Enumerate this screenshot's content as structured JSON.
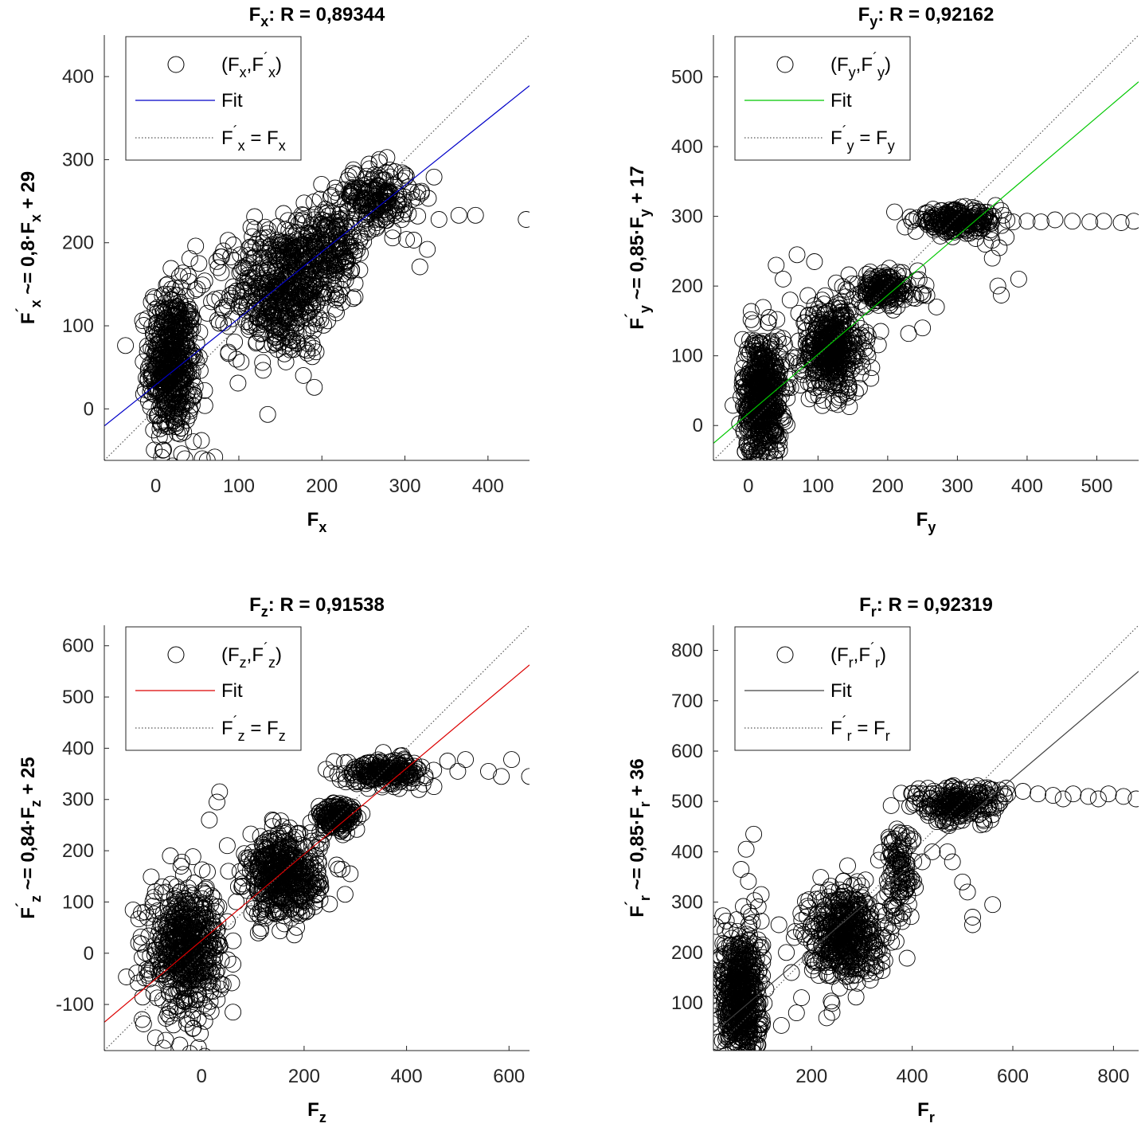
{
  "chart_data": [
    {
      "type": "scatter",
      "id": "fx",
      "title": {
        "var": "F",
        "sub": "x",
        "rest": ": R = 0,89344"
      },
      "xlabel": {
        "main": "F",
        "sub": "x"
      },
      "ylabel": {
        "main": "F",
        "prime": "´",
        "sub": "x",
        "rest": " ~= 0,8·F",
        "sub2": "x",
        "rest2": " + 29"
      },
      "xlim": [
        -62,
        450
      ],
      "ylim": [
        -62,
        450
      ],
      "xticks": [
        0,
        100,
        200,
        300,
        400
      ],
      "yticks": [
        0,
        100,
        200,
        300,
        400
      ],
      "fit": {
        "slope": 0.8,
        "intercept": 29,
        "color": "#0000c8"
      },
      "identity_color": "#555555",
      "legend": {
        "position": "top-left",
        "scatter": {
          "main": "(F",
          "sub": "x",
          "mid": ",F",
          "prime": "´",
          "sub2": "x",
          "end": ")"
        },
        "fit": "Fit",
        "identity": {
          "a": "F",
          "prime": "´",
          "asub": "x",
          "eq": " = F",
          "bsub": "x"
        }
      },
      "clusters": [
        {
          "cx": 20,
          "cy": 55,
          "sx": 14,
          "sy": 45,
          "n": 560
        },
        {
          "cx": 150,
          "cy": 140,
          "sx": 30,
          "sy": 38,
          "n": 520
        },
        {
          "cx": 205,
          "cy": 195,
          "sx": 25,
          "sy": 25,
          "n": 260
        },
        {
          "cx": 265,
          "cy": 255,
          "sx": 22,
          "sy": 18,
          "n": 200
        }
      ],
      "points": [
        [
          446,
          228
        ],
        [
          385,
          233
        ],
        [
          365,
          233
        ],
        [
          341,
          228
        ],
        [
          318,
          171
        ],
        [
          327,
          192
        ],
        [
          302,
          204
        ],
        [
          41,
          181
        ],
        [
          48,
          196
        ],
        [
          56,
          -60
        ],
        [
          62,
          -62
        ],
        [
          71,
          -58
        ],
        [
          35,
          -60
        ],
        [
          75,
          170
        ],
        [
          59,
          154
        ],
        [
          99,
          31
        ],
        [
          55,
          -38
        ],
        [
          31,
          -54
        ],
        [
          52,
          175
        ],
        [
          240,
          151
        ],
        [
          280,
          235
        ],
        [
          300,
          282
        ],
        [
          335,
          279
        ],
        [
          320,
          262
        ]
      ]
    },
    {
      "type": "scatter",
      "id": "fy",
      "title": {
        "var": "F",
        "sub": "y",
        "rest": ": R = 0,92162"
      },
      "xlabel": {
        "main": "F",
        "sub": "y"
      },
      "ylabel": {
        "main": "F",
        "prime": "´",
        "sub": "y",
        "rest": " ~= 0,85·F",
        "sub2": "y",
        "rest2": " + 17"
      },
      "xlim": [
        -50,
        560
      ],
      "ylim": [
        -50,
        560
      ],
      "xticks": [
        0,
        100,
        200,
        300,
        400,
        500
      ],
      "yticks": [
        0,
        100,
        200,
        300,
        400,
        500
      ],
      "fit": {
        "slope": 0.85,
        "intercept": 17,
        "color": "#00c800"
      },
      "identity_color": "#555555",
      "legend": {
        "position": "top-left",
        "scatter": {
          "main": "(F",
          "sub": "y",
          "mid": ",F",
          "prime": "´",
          "sub2": "y",
          "end": ")"
        },
        "fit": "Fit",
        "identity": {
          "a": "F",
          "prime": "´",
          "asub": "y",
          "eq": " = F",
          "bsub": "y"
        }
      },
      "clusters": [
        {
          "cx": 20,
          "cy": 40,
          "sx": 14,
          "sy": 45,
          "n": 560
        },
        {
          "cx": 120,
          "cy": 110,
          "sx": 22,
          "sy": 32,
          "n": 460
        },
        {
          "cx": 195,
          "cy": 195,
          "sx": 25,
          "sy": 12,
          "n": 180
        },
        {
          "cx": 300,
          "cy": 293,
          "sx": 30,
          "sy": 8,
          "n": 240
        }
      ],
      "points": [
        [
          553,
          293
        ],
        [
          535,
          291
        ],
        [
          510,
          293
        ],
        [
          490,
          292
        ],
        [
          465,
          293
        ],
        [
          440,
          295
        ],
        [
          420,
          292
        ],
        [
          400,
          293
        ],
        [
          380,
          292
        ],
        [
          360,
          255
        ],
        [
          350,
          240
        ],
        [
          358,
          200
        ],
        [
          363,
          187
        ],
        [
          388,
          210
        ],
        [
          370,
          270
        ],
        [
          340,
          260
        ],
        [
          70,
          245
        ],
        [
          50,
          210
        ],
        [
          40,
          230
        ],
        [
          95,
          235
        ],
        [
          30,
          155
        ],
        [
          60,
          180
        ],
        [
          270,
          170
        ],
        [
          250,
          140
        ],
        [
          230,
          132
        ],
        [
          190,
          135
        ]
      ]
    },
    {
      "type": "scatter",
      "id": "fz",
      "title": {
        "var": "F",
        "sub": "z",
        "rest": ": R = 0,91538"
      },
      "xlabel": {
        "main": "F",
        "sub": "z"
      },
      "ylabel": {
        "main": "F",
        "prime": "´",
        "sub": "z",
        "rest": " ~= 0,84·F",
        "sub2": "z",
        "rest2": " + 25"
      },
      "xlim": [
        -190,
        640
      ],
      "ylim": [
        -190,
        640
      ],
      "xticks": [
        0,
        200,
        400,
        600
      ],
      "yticks": [
        -100,
        0,
        100,
        200,
        300,
        400,
        500,
        600
      ],
      "fit": {
        "slope": 0.84,
        "intercept": 25,
        "color": "#dc0000"
      },
      "identity_color": "#555555",
      "legend": {
        "position": "top-left",
        "scatter": {
          "main": "(F",
          "sub": "z",
          "mid": ",F",
          "prime": "´",
          "sub2": "z",
          "end": ")"
        },
        "fit": "Fit",
        "identity": {
          "a": "F",
          "prime": "´",
          "asub": "z",
          "eq": " = F",
          "bsub": "z"
        }
      },
      "clusters": [
        {
          "cx": -30,
          "cy": 10,
          "sx": 35,
          "sy": 60,
          "n": 560
        },
        {
          "cx": 160,
          "cy": 150,
          "sx": 35,
          "sy": 40,
          "n": 500
        },
        {
          "cx": 265,
          "cy": 265,
          "sx": 20,
          "sy": 15,
          "n": 160
        },
        {
          "cx": 360,
          "cy": 355,
          "sx": 40,
          "sy": 12,
          "n": 220
        }
      ],
      "points": [
        [
          640,
          345
        ],
        [
          605,
          378
        ],
        [
          585,
          345
        ],
        [
          560,
          355
        ],
        [
          515,
          378
        ],
        [
          480,
          375
        ],
        [
          500,
          355
        ],
        [
          280,
          115
        ],
        [
          290,
          155
        ],
        [
          35,
          315
        ],
        [
          30,
          295
        ],
        [
          15,
          260
        ],
        [
          -70,
          -170
        ],
        [
          -75,
          -185
        ],
        [
          -55,
          -140
        ],
        [
          -90,
          -165
        ],
        [
          50,
          210
        ],
        [
          95,
          160
        ]
      ]
    },
    {
      "type": "scatter",
      "id": "fr",
      "title": {
        "var": "F",
        "sub": "r",
        "rest": ": R = 0,92319"
      },
      "xlabel": {
        "main": "F",
        "sub": "r"
      },
      "ylabel": {
        "main": "F",
        "prime": "´",
        "sub": "r",
        "rest": " ~= 0,85·F",
        "sub2": "r",
        "rest2": " + 36"
      },
      "xlim": [
        5,
        850
      ],
      "ylim": [
        5,
        850
      ],
      "xticks": [
        200,
        400,
        600,
        800
      ],
      "yticks": [
        100,
        200,
        300,
        400,
        500,
        600,
        700,
        800
      ],
      "fit": {
        "slope": 0.85,
        "intercept": 36,
        "color": "#404040"
      },
      "identity_color": "#555555",
      "legend": {
        "position": "top-left",
        "scatter": {
          "main": "(F",
          "sub": "r",
          "mid": ",F",
          "prime": "´",
          "sub2": "r",
          "end": ")"
        },
        "fit": "Fit",
        "identity": {
          "a": "F",
          "prime": "´",
          "asub": "r",
          "eq": " = F",
          "bsub": "r"
        }
      },
      "clusters": [
        {
          "cx": 60,
          "cy": 110,
          "sx": 20,
          "sy": 70,
          "n": 560
        },
        {
          "cx": 265,
          "cy": 240,
          "sx": 35,
          "sy": 45,
          "n": 480
        },
        {
          "cx": 375,
          "cy": 360,
          "sx": 15,
          "sy": 50,
          "n": 120
        },
        {
          "cx": 490,
          "cy": 495,
          "sx": 45,
          "sy": 18,
          "n": 240
        }
      ],
      "points": [
        [
          845,
          505
        ],
        [
          820,
          510
        ],
        [
          790,
          515
        ],
        [
          770,
          505
        ],
        [
          750,
          510
        ],
        [
          720,
          515
        ],
        [
          700,
          505
        ],
        [
          680,
          512
        ],
        [
          650,
          515
        ],
        [
          620,
          520
        ],
        [
          590,
          515
        ],
        [
          560,
          295
        ],
        [
          520,
          255
        ],
        [
          520,
          270
        ],
        [
          510,
          320
        ],
        [
          500,
          340
        ],
        [
          480,
          380
        ],
        [
          470,
          400
        ],
        [
          440,
          400
        ],
        [
          420,
          380
        ],
        [
          85,
          435
        ],
        [
          70,
          405
        ],
        [
          60,
          365
        ],
        [
          100,
          315
        ],
        [
          135,
          255
        ],
        [
          150,
          200
        ],
        [
          160,
          160
        ],
        [
          180,
          110
        ],
        [
          170,
          80
        ],
        [
          140,
          55
        ],
        [
          230,
          70
        ]
      ]
    }
  ]
}
